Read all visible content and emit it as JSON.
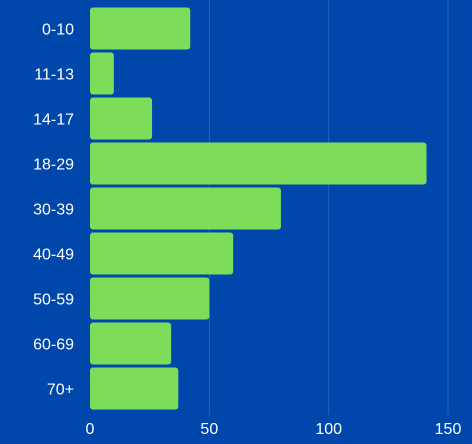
{
  "colors": {
    "background": "#0047ab",
    "bar": "#7ddc5a",
    "grid": "#2a5fb8",
    "text": "#ffffff"
  },
  "chart_data": {
    "type": "bar",
    "orientation": "horizontal",
    "categories": [
      "0-10",
      "11-13",
      "14-17",
      "18-29",
      "30-39",
      "40-49",
      "50-59",
      "60-69",
      "70+"
    ],
    "values": [
      42,
      10,
      26,
      141,
      80,
      60,
      50,
      34,
      37
    ],
    "title": "",
    "xlabel": "",
    "ylabel": "",
    "xlim": [
      0,
      150
    ],
    "xticks": [
      0,
      50,
      100,
      150
    ],
    "xtick_labels": [
      "0",
      "50",
      "100",
      "150"
    ],
    "grid": true
  }
}
